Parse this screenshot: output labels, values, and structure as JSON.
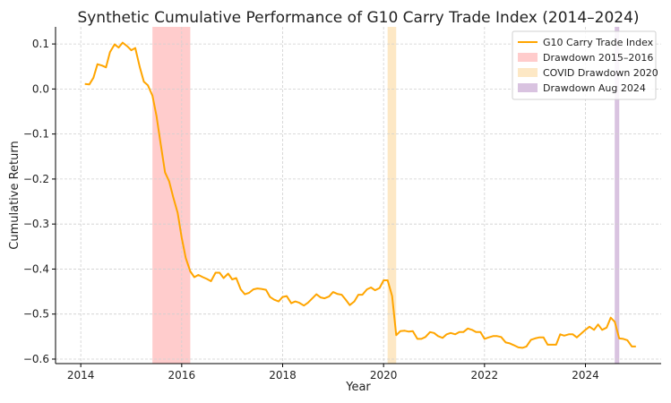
{
  "chart_data": {
    "type": "line",
    "title": "Synthetic Cumulative Performance of G10 Carry Trade Index (2014–2024)",
    "xlabel": "Year",
    "ylabel": "Cumulative Return",
    "xlim": [
      2013.5,
      2025.5
    ],
    "ylim": [
      -0.61,
      0.138
    ],
    "x_ticks": [
      2014,
      2016,
      2018,
      2020,
      2022,
      2024
    ],
    "y_ticks": [
      0.1,
      0.0,
      -0.1,
      -0.2,
      -0.3,
      -0.4,
      -0.5,
      -0.6
    ],
    "x_tick_labels": [
      "2014",
      "2016",
      "2018",
      "2020",
      "2022",
      "2024"
    ],
    "y_tick_labels": [
      "0.1",
      "0.0",
      "−0.1",
      "−0.2",
      "−0.3",
      "−0.4",
      "−0.5",
      "−0.6"
    ],
    "grid": true,
    "legend_position": "top-right",
    "series": [
      {
        "name": "G10 Carry Trade Index",
        "color": "#ffa500",
        "x": [
          2014.08,
          2014.17,
          2014.25,
          2014.33,
          2014.42,
          2014.5,
          2014.58,
          2014.67,
          2014.75,
          2014.83,
          2014.92,
          2015.0,
          2015.08,
          2015.17,
          2015.25,
          2015.33,
          2015.42,
          2015.5,
          2015.58,
          2015.67,
          2015.75,
          2015.83,
          2015.92,
          2016.0,
          2016.08,
          2016.17,
          2016.25,
          2016.33,
          2016.42,
          2016.5,
          2016.58,
          2016.67,
          2016.75,
          2016.83,
          2016.92,
          2017.0,
          2017.08,
          2017.17,
          2017.25,
          2017.33,
          2017.42,
          2017.5,
          2017.58,
          2017.67,
          2017.75,
          2017.83,
          2017.92,
          2018.0,
          2018.08,
          2018.17,
          2018.25,
          2018.33,
          2018.42,
          2018.5,
          2018.58,
          2018.67,
          2018.75,
          2018.83,
          2018.92,
          2019.0,
          2019.08,
          2019.17,
          2019.25,
          2019.33,
          2019.42,
          2019.5,
          2019.58,
          2019.67,
          2019.75,
          2019.83,
          2019.92,
          2020.0,
          2020.08,
          2020.17,
          2020.25,
          2020.33,
          2020.42,
          2020.5,
          2020.58,
          2020.67,
          2020.75,
          2020.83,
          2020.92,
          2021.0,
          2021.08,
          2021.17,
          2021.25,
          2021.33,
          2021.42,
          2021.5,
          2021.58,
          2021.67,
          2021.75,
          2021.83,
          2021.92,
          2022.0,
          2022.08,
          2022.17,
          2022.25,
          2022.33,
          2022.42,
          2022.5,
          2022.58,
          2022.67,
          2022.75,
          2022.83,
          2022.92,
          2023.0,
          2023.08,
          2023.17,
          2023.25,
          2023.33,
          2023.42,
          2023.5,
          2023.58,
          2023.67,
          2023.75,
          2023.83,
          2023.92,
          2024.0,
          2024.08,
          2024.17,
          2024.25,
          2024.33,
          2024.42,
          2024.5,
          2024.58,
          2024.67,
          2024.75,
          2024.83,
          2024.92,
          2025.0
        ],
        "y": [
          0.011,
          0.01,
          0.025,
          0.055,
          0.052,
          0.048,
          0.082,
          0.099,
          0.092,
          0.103,
          0.095,
          0.086,
          0.091,
          0.048,
          0.016,
          0.008,
          -0.015,
          -0.06,
          -0.12,
          -0.185,
          -0.205,
          -0.24,
          -0.275,
          -0.33,
          -0.375,
          -0.405,
          -0.418,
          -0.413,
          -0.418,
          -0.422,
          -0.427,
          -0.408,
          -0.408,
          -0.42,
          -0.41,
          -0.423,
          -0.42,
          -0.445,
          -0.456,
          -0.453,
          -0.445,
          -0.443,
          -0.444,
          -0.446,
          -0.462,
          -0.468,
          -0.472,
          -0.462,
          -0.46,
          -0.476,
          -0.472,
          -0.475,
          -0.481,
          -0.475,
          -0.466,
          -0.456,
          -0.463,
          -0.465,
          -0.461,
          -0.451,
          -0.455,
          -0.457,
          -0.468,
          -0.48,
          -0.472,
          -0.457,
          -0.457,
          -0.445,
          -0.441,
          -0.447,
          -0.442,
          -0.425,
          -0.425,
          -0.46,
          -0.547,
          -0.538,
          -0.537,
          -0.539,
          -0.538,
          -0.555,
          -0.555,
          -0.551,
          -0.54,
          -0.542,
          -0.549,
          -0.553,
          -0.545,
          -0.542,
          -0.545,
          -0.54,
          -0.54,
          -0.532,
          -0.535,
          -0.54,
          -0.54,
          -0.555,
          -0.552,
          -0.549,
          -0.549,
          -0.551,
          -0.563,
          -0.565,
          -0.569,
          -0.574,
          -0.575,
          -0.572,
          -0.557,
          -0.554,
          -0.552,
          -0.552,
          -0.568,
          -0.568,
          -0.568,
          -0.545,
          -0.548,
          -0.545,
          -0.545,
          -0.552,
          -0.543,
          -0.535,
          -0.528,
          -0.535,
          -0.523,
          -0.535,
          -0.53,
          -0.508,
          -0.517,
          -0.554,
          -0.555,
          -0.558,
          -0.572,
          -0.572
        ]
      }
    ],
    "shaded_regions": [
      {
        "name": "Drawdown 2015–2016",
        "x_start": 2015.42,
        "x_end": 2016.17,
        "color": "#ffcccc"
      },
      {
        "name": "COVID Drawdown 2020",
        "x_start": 2020.08,
        "x_end": 2020.25,
        "color": "#fde8c5"
      },
      {
        "name": "Drawdown Aug 2024",
        "x_start": 2024.58,
        "x_end": 2024.67,
        "color": "#d9c3e0"
      }
    ]
  }
}
